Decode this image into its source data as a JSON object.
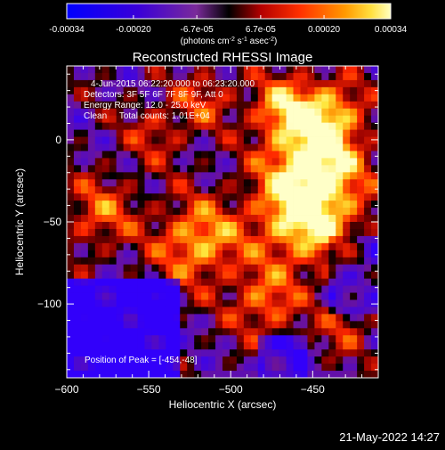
{
  "colorbar": {
    "tick_labels": [
      "-0.00034",
      "-0.00020",
      "-6.7e-05",
      "6.7e-05",
      "0.00020",
      "0.00034"
    ],
    "tick_values": [
      -0.00034,
      -0.0002,
      -6.7e-05,
      6.7e-05,
      0.0002,
      0.00034
    ],
    "range": [
      -0.00034,
      0.00034
    ],
    "unit_parts": [
      "(photons cm",
      "-2",
      " s",
      "-1",
      " asec",
      "-2",
      ")"
    ]
  },
  "chart_data": {
    "type": "heatmap",
    "title": "Reconstructed RHESSI Image",
    "xlabel": "Heliocentric X (arcsec)",
    "ylabel": "Heliocentric Y (arcsec)",
    "xlim": [
      -600,
      -410
    ],
    "ylim": [
      -145,
      45
    ],
    "x_ticks": [
      -600,
      -550,
      -500,
      -450
    ],
    "y_ticks": [
      -100,
      -50,
      0
    ],
    "x_tick_labels": [
      "−600",
      "−550",
      "−500",
      "−450"
    ],
    "y_tick_labels": [
      "−100",
      "−50",
      "0"
    ],
    "grid": false,
    "annotations": [
      "4-Jun-2015 06:22:20.000 to 06:23:20.000",
      "Detectors: 3F 5F 6F 7F 8F 9F, Att 0",
      "Energy Range: 12.0 - 25.0 keV",
      "Clean     Total counts: 1.01E+04"
    ],
    "peak_label": "Position of Peak = [-454,-48]",
    "peak": [
      -454,
      -48
    ]
  },
  "timestamp": "21-May-2022 14:27"
}
